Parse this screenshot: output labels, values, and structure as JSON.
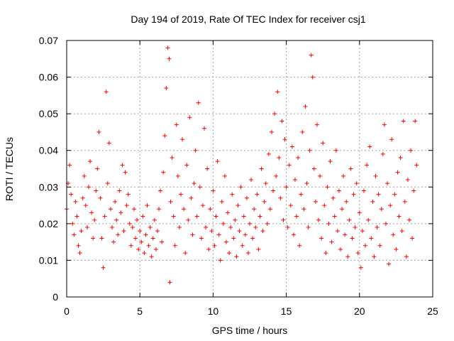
{
  "chart_data": {
    "type": "scatter",
    "title": "Day 194 of 2019, Rate Of TEC Index for receiver csj1",
    "xlabel": "GPS time / hours",
    "ylabel": "ROTI / TECUs",
    "xlim": [
      0,
      25
    ],
    "ylim": [
      0,
      0.07
    ],
    "xticks": [
      0,
      5,
      10,
      15,
      20,
      25
    ],
    "xtick_labels": [
      "0",
      "5",
      "10",
      "15",
      "20",
      "25"
    ],
    "yticks": [
      0,
      0.01,
      0.02,
      0.03,
      0.04,
      0.05,
      0.06,
      0.07
    ],
    "ytick_labels": [
      "0",
      "0.01",
      "0.02",
      "0.03",
      "0.04",
      "0.05",
      "0.06",
      "0.07"
    ],
    "grid": true,
    "marker": "+",
    "color": "#ff0000",
    "series": [
      {
        "name": "ROTI",
        "points": [
          [
            0.0,
            0.024
          ],
          [
            0.1,
            0.031
          ],
          [
            0.2,
            0.036
          ],
          [
            0.3,
            0.028
          ],
          [
            0.4,
            0.02
          ],
          [
            0.5,
            0.017
          ],
          [
            0.6,
            0.026
          ],
          [
            0.7,
            0.022
          ],
          [
            0.8,
            0.014
          ],
          [
            0.9,
            0.012
          ],
          [
            1.0,
            0.018
          ],
          [
            1.1,
            0.027
          ],
          [
            1.2,
            0.033
          ],
          [
            1.3,
            0.025
          ],
          [
            1.4,
            0.019
          ],
          [
            1.5,
            0.03
          ],
          [
            1.6,
            0.037
          ],
          [
            1.7,
            0.023
          ],
          [
            1.8,
            0.016
          ],
          [
            1.9,
            0.021
          ],
          [
            2.0,
            0.029
          ],
          [
            2.1,
            0.035
          ],
          [
            2.2,
            0.045
          ],
          [
            2.3,
            0.027
          ],
          [
            2.4,
            0.016
          ],
          [
            2.5,
            0.008
          ],
          [
            2.6,
            0.022
          ],
          [
            2.7,
            0.056
          ],
          [
            2.8,
            0.031
          ],
          [
            2.9,
            0.042
          ],
          [
            3.0,
            0.024
          ],
          [
            3.1,
            0.019
          ],
          [
            3.2,
            0.015
          ],
          [
            3.3,
            0.026
          ],
          [
            3.4,
            0.021
          ],
          [
            3.5,
            0.017
          ],
          [
            3.6,
            0.029
          ],
          [
            3.7,
            0.023
          ],
          [
            3.8,
            0.036
          ],
          [
            3.9,
            0.018
          ],
          [
            4.0,
            0.034
          ],
          [
            4.1,
            0.025
          ],
          [
            4.2,
            0.028
          ],
          [
            4.3,
            0.02
          ],
          [
            4.4,
            0.014
          ],
          [
            4.5,
            0.019
          ],
          [
            4.6,
            0.024
          ],
          [
            4.7,
            0.016
          ],
          [
            4.8,
            0.021
          ],
          [
            4.9,
            0.013
          ],
          [
            5.0,
            0.018
          ],
          [
            5.1,
            0.015
          ],
          [
            5.2,
            0.022
          ],
          [
            5.3,
            0.012
          ],
          [
            5.4,
            0.017
          ],
          [
            5.5,
            0.025
          ],
          [
            5.6,
            0.014
          ],
          [
            5.7,
            0.019
          ],
          [
            5.8,
            0.011
          ],
          [
            5.9,
            0.016
          ],
          [
            6.0,
            0.021
          ],
          [
            6.1,
            0.013
          ],
          [
            6.2,
            0.018
          ],
          [
            6.3,
            0.024
          ],
          [
            6.4,
            0.029
          ],
          [
            6.5,
            0.015
          ],
          [
            6.6,
            0.034
          ],
          [
            6.7,
            0.044
          ],
          [
            6.8,
            0.057
          ],
          [
            6.9,
            0.068
          ],
          [
            7.0,
            0.065
          ],
          [
            7.05,
            0.004
          ],
          [
            7.1,
            0.026
          ],
          [
            7.2,
            0.038
          ],
          [
            7.3,
            0.022
          ],
          [
            7.4,
            0.014
          ],
          [
            7.5,
            0.047
          ],
          [
            7.6,
            0.033
          ],
          [
            7.7,
            0.019
          ],
          [
            7.8,
            0.028
          ],
          [
            7.9,
            0.043
          ],
          [
            8.0,
            0.024
          ],
          [
            8.1,
            0.012
          ],
          [
            8.2,
            0.036
          ],
          [
            8.3,
            0.021
          ],
          [
            8.4,
            0.049
          ],
          [
            8.5,
            0.027
          ],
          [
            8.6,
            0.017
          ],
          [
            8.7,
            0.031
          ],
          [
            8.8,
            0.04
          ],
          [
            8.9,
            0.022
          ],
          [
            9.0,
            0.053
          ],
          [
            9.1,
            0.03
          ],
          [
            9.2,
            0.016
          ],
          [
            9.3,
            0.025
          ],
          [
            9.4,
            0.046
          ],
          [
            9.5,
            0.019
          ],
          [
            9.6,
            0.035
          ],
          [
            9.7,
            0.013
          ],
          [
            9.8,
            0.024
          ],
          [
            9.9,
            0.018
          ],
          [
            10.0,
            0.029
          ],
          [
            10.1,
            0.014
          ],
          [
            10.2,
            0.022
          ],
          [
            10.3,
            0.037
          ],
          [
            10.4,
            0.017
          ],
          [
            10.5,
            0.01
          ],
          [
            10.6,
            0.026
          ],
          [
            10.7,
            0.02
          ],
          [
            10.8,
            0.033
          ],
          [
            10.9,
            0.015
          ],
          [
            11.0,
            0.023
          ],
          [
            11.1,
            0.012
          ],
          [
            11.2,
            0.019
          ],
          [
            11.3,
            0.028
          ],
          [
            11.4,
            0.016
          ],
          [
            11.5,
            0.021
          ],
          [
            11.6,
            0.011
          ],
          [
            11.7,
            0.025
          ],
          [
            11.8,
            0.018
          ],
          [
            11.9,
            0.03
          ],
          [
            12.0,
            0.014
          ],
          [
            12.1,
            0.022
          ],
          [
            12.2,
            0.017
          ],
          [
            12.3,
            0.027
          ],
          [
            12.4,
            0.012
          ],
          [
            12.5,
            0.02
          ],
          [
            12.6,
            0.032
          ],
          [
            12.7,
            0.016
          ],
          [
            12.8,
            0.024
          ],
          [
            12.9,
            0.019
          ],
          [
            13.0,
            0.028
          ],
          [
            13.1,
            0.013
          ],
          [
            13.2,
            0.022
          ],
          [
            13.3,
            0.035
          ],
          [
            13.4,
            0.018
          ],
          [
            13.5,
            0.026
          ],
          [
            13.6,
            0.031
          ],
          [
            13.7,
            0.02
          ],
          [
            13.8,
            0.039
          ],
          [
            13.9,
            0.024
          ],
          [
            14.0,
            0.045
          ],
          [
            14.1,
            0.029
          ],
          [
            14.2,
            0.05
          ],
          [
            14.3,
            0.033
          ],
          [
            14.4,
            0.056
          ],
          [
            14.5,
            0.038
          ],
          [
            14.6,
            0.027
          ],
          [
            14.7,
            0.048
          ],
          [
            14.8,
            0.021
          ],
          [
            14.9,
            0.043
          ],
          [
            15.0,
            0.03
          ],
          [
            15.1,
            0.019
          ],
          [
            15.2,
            0.036
          ],
          [
            15.3,
            0.025
          ],
          [
            15.4,
            0.041
          ],
          [
            15.5,
            0.017
          ],
          [
            15.6,
            0.032
          ],
          [
            15.7,
            0.022
          ],
          [
            15.8,
            0.038
          ],
          [
            15.9,
            0.014
          ],
          [
            16.0,
            0.028
          ],
          [
            16.1,
            0.045
          ],
          [
            16.2,
            0.024
          ],
          [
            16.3,
            0.052
          ],
          [
            16.4,
            0.031
          ],
          [
            16.5,
            0.019
          ],
          [
            16.6,
            0.04
          ],
          [
            16.7,
            0.066
          ],
          [
            16.8,
            0.06
          ],
          [
            16.9,
            0.035
          ],
          [
            17.0,
            0.026
          ],
          [
            17.1,
            0.047
          ],
          [
            17.2,
            0.021
          ],
          [
            17.3,
            0.033
          ],
          [
            17.4,
            0.016
          ],
          [
            17.5,
            0.042
          ],
          [
            17.6,
            0.025
          ],
          [
            17.7,
            0.012
          ],
          [
            17.8,
            0.03
          ],
          [
            17.9,
            0.02
          ],
          [
            18.0,
            0.037
          ],
          [
            18.1,
            0.015
          ],
          [
            18.2,
            0.027
          ],
          [
            18.3,
            0.022
          ],
          [
            18.4,
            0.04
          ],
          [
            18.5,
            0.018
          ],
          [
            18.6,
            0.029
          ],
          [
            18.7,
            0.013
          ],
          [
            18.8,
            0.024
          ],
          [
            18.9,
            0.033
          ],
          [
            19.0,
            0.017
          ],
          [
            19.1,
            0.026
          ],
          [
            19.2,
            0.011
          ],
          [
            19.3,
            0.021
          ],
          [
            19.4,
            0.035
          ],
          [
            19.5,
            0.016
          ],
          [
            19.6,
            0.028
          ],
          [
            19.7,
            0.019
          ],
          [
            19.8,
            0.031
          ],
          [
            19.9,
            0.012
          ],
          [
            20.0,
            0.023
          ],
          [
            20.1,
            0.008
          ],
          [
            20.2,
            0.018
          ],
          [
            20.3,
            0.029
          ],
          [
            20.4,
            0.014
          ],
          [
            20.5,
            0.036
          ],
          [
            20.6,
            0.021
          ],
          [
            20.7,
            0.041
          ],
          [
            20.8,
            0.016
          ],
          [
            20.9,
            0.026
          ],
          [
            21.0,
            0.011
          ],
          [
            21.1,
            0.033
          ],
          [
            21.2,
            0.019
          ],
          [
            21.3,
            0.028
          ],
          [
            21.4,
            0.014
          ],
          [
            21.5,
            0.024
          ],
          [
            21.6,
            0.039
          ],
          [
            21.7,
            0.047
          ],
          [
            21.8,
            0.02
          ],
          [
            21.9,
            0.031
          ],
          [
            22.0,
            0.009
          ],
          [
            22.1,
            0.025
          ],
          [
            22.2,
            0.043
          ],
          [
            22.3,
            0.017
          ],
          [
            22.4,
            0.028
          ],
          [
            22.5,
            0.013
          ],
          [
            22.6,
            0.034
          ],
          [
            22.7,
            0.022
          ],
          [
            22.8,
            0.038
          ],
          [
            22.9,
            0.018
          ],
          [
            23.0,
            0.048
          ],
          [
            23.1,
            0.026
          ],
          [
            23.2,
            0.011
          ],
          [
            23.3,
            0.032
          ],
          [
            23.4,
            0.021
          ],
          [
            23.5,
            0.04
          ],
          [
            23.6,
            0.016
          ],
          [
            23.7,
            0.029
          ],
          [
            23.8,
            0.048
          ],
          [
            23.9,
            0.036
          ]
        ]
      }
    ]
  }
}
